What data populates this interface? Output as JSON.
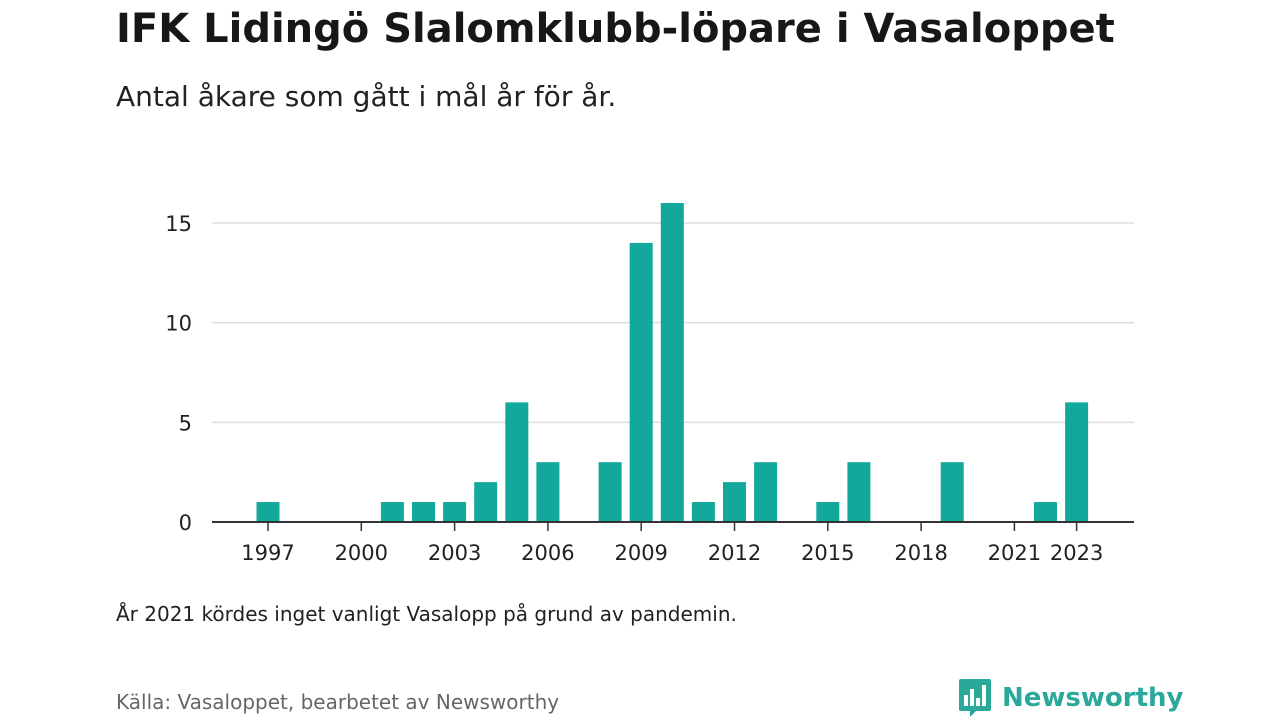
{
  "header": {
    "title": "IFK Lidingö Slalomklubb-löpare i Vasaloppet",
    "subtitle": "Antal åkare som gått i mål år för år."
  },
  "footer": {
    "note": "År 2021 kördes inget vanligt Vasalopp på grund av pandemin.",
    "source": "Källa: Vasaloppet, bearbetet av Newsworthy",
    "brand": "Newsworthy"
  },
  "colors": {
    "bar": "#12a89b",
    "grid": "#dddddd",
    "axis": "#333333",
    "brand": "#2aa89a"
  },
  "icons": {
    "brand_logo": "newsworthy-logo-icon"
  },
  "chart_data": {
    "type": "bar",
    "title": "IFK Lidingö Slalomklubb-löpare i Vasaloppet",
    "subtitle": "Antal åkare som gått i mål år för år.",
    "xlabel": "",
    "ylabel": "",
    "x": [
      1997,
      1998,
      1999,
      2000,
      2001,
      2002,
      2003,
      2004,
      2005,
      2006,
      2007,
      2008,
      2009,
      2010,
      2011,
      2012,
      2013,
      2014,
      2015,
      2016,
      2017,
      2018,
      2019,
      2020,
      2021,
      2022,
      2023
    ],
    "values": [
      1,
      0,
      0,
      0,
      1,
      1,
      1,
      2,
      6,
      3,
      0,
      3,
      14,
      16,
      1,
      2,
      3,
      0,
      1,
      3,
      0,
      0,
      3,
      0,
      0,
      1,
      6
    ],
    "ylim": [
      0,
      16
    ],
    "yticks": [
      0,
      5,
      10,
      15
    ],
    "xticks": [
      1997,
      2000,
      2003,
      2006,
      2009,
      2012,
      2015,
      2018,
      2021,
      2023
    ],
    "grid": true,
    "legend": "none"
  }
}
